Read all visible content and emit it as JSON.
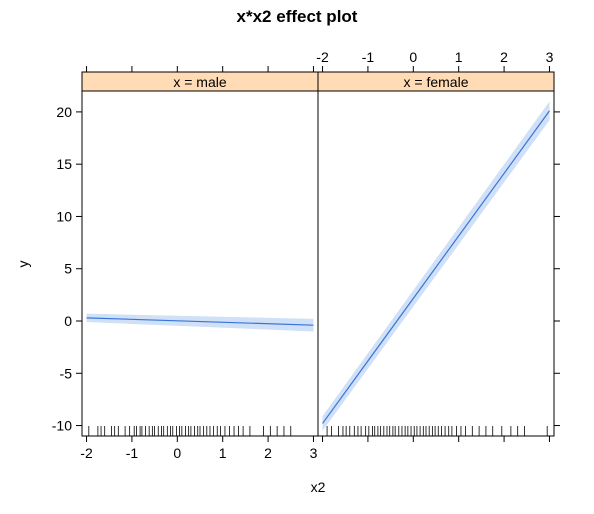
{
  "chart_data": {
    "type": "line",
    "title": "x*x2 effect plot",
    "xlabel": "x2",
    "ylabel": "y",
    "xlim": [
      -2.1,
      3.1
    ],
    "ylim": [
      -11,
      22
    ],
    "x_ticks": [
      -2,
      -1,
      0,
      1,
      2,
      3
    ],
    "x_tick_labels": [
      "-2",
      "-1",
      "0",
      "1",
      "2",
      "3"
    ],
    "y_ticks": [
      -10,
      -5,
      0,
      5,
      10,
      15,
      20
    ],
    "y_tick_labels": [
      "-10",
      "-5",
      "0",
      "5",
      "10",
      "15",
      "20"
    ],
    "colors": {
      "line": "#3a74d8",
      "band": "#cfe0f7",
      "strip": "#ffdcb5",
      "frame": "#000000"
    },
    "panels": [
      {
        "strip": "x = male",
        "line": {
          "x": [
            -2,
            3
          ],
          "y": [
            0.3,
            -0.4
          ]
        },
        "ci": {
          "x": [
            -2,
            3
          ],
          "lower": [
            -0.1,
            -1.0
          ],
          "upper": [
            0.7,
            0.2
          ]
        },
        "rug": [
          -1.95,
          -1.75,
          -1.68,
          -1.6,
          -1.45,
          -1.38,
          -1.3,
          -1.15,
          -1.05,
          -0.95,
          -0.9,
          -0.82,
          -0.78,
          -0.7,
          -0.62,
          -0.55,
          -0.5,
          -0.42,
          -0.35,
          -0.3,
          -0.22,
          -0.15,
          -0.1,
          -0.02,
          0.05,
          0.1,
          0.18,
          0.25,
          0.3,
          0.38,
          0.45,
          0.5,
          0.58,
          0.65,
          0.72,
          0.8,
          0.88,
          0.95,
          1.05,
          1.15,
          1.25,
          1.35,
          1.45,
          1.6,
          1.9,
          2.05,
          2.2,
          2.35,
          2.5
        ]
      },
      {
        "strip": "x = female",
        "line": {
          "x": [
            -2,
            3
          ],
          "y": [
            -9.8,
            20.1
          ]
        },
        "ci": {
          "x": [
            -2,
            3
          ],
          "lower": [
            -10.5,
            19.2
          ],
          "upper": [
            -9.1,
            21.0
          ]
        },
        "rug": [
          -1.9,
          -1.8,
          -1.65,
          -1.55,
          -1.48,
          -1.4,
          -1.3,
          -1.22,
          -1.15,
          -1.05,
          -0.98,
          -0.9,
          -0.85,
          -0.78,
          -0.72,
          -0.65,
          -0.58,
          -0.52,
          -0.45,
          -0.4,
          -0.32,
          -0.25,
          -0.18,
          -0.12,
          -0.05,
          0.02,
          0.08,
          0.15,
          0.22,
          0.28,
          0.35,
          0.42,
          0.48,
          0.55,
          0.62,
          0.7,
          0.78,
          0.85,
          0.95,
          1.05,
          1.15,
          1.3,
          1.45,
          1.6,
          1.75,
          1.95,
          2.15,
          2.3,
          2.45,
          2.95
        ]
      }
    ]
  }
}
